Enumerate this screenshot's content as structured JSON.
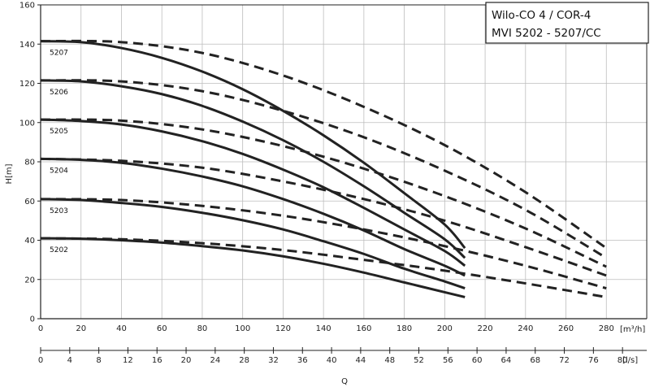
{
  "chart_data": {
    "type": "line",
    "title_lines": [
      "Wilo-CO 4 / COR-4",
      "MVI 5202 - 5207/CC"
    ],
    "ylabel": "H[m]",
    "xlabel": "Q",
    "x_unit": "[m³/h]",
    "x2_unit": "[l/s]",
    "xlim": [
      0,
      300
    ],
    "ylim": [
      0,
      160
    ],
    "x_ticks": [
      0,
      20,
      40,
      60,
      80,
      100,
      120,
      140,
      160,
      180,
      200,
      220,
      240,
      260,
      280
    ],
    "y_ticks": [
      0,
      20,
      40,
      60,
      80,
      100,
      120,
      140,
      160
    ],
    "x2_ticks": [
      0,
      4,
      8,
      12,
      16,
      20,
      24,
      28,
      32,
      36,
      40,
      44,
      48,
      52,
      56,
      60,
      64,
      68,
      72,
      76,
      80
    ],
    "grid": true,
    "series": [
      {
        "name": "5202",
        "style": "solid",
        "x": [
          0,
          20,
          40,
          60,
          80,
          100,
          120,
          140,
          160,
          180,
          200,
          210
        ],
        "values": [
          41,
          40.8,
          40,
          38.8,
          37,
          34.8,
          31.8,
          28,
          23.5,
          18.5,
          13.5,
          11
        ]
      },
      {
        "name": "5203",
        "style": "solid",
        "x": [
          0,
          20,
          40,
          60,
          80,
          100,
          120,
          140,
          160,
          180,
          200,
          210
        ],
        "values": [
          61,
          60.5,
          59,
          57,
          54,
          50.2,
          45.5,
          39.5,
          33,
          25.5,
          19,
          15.5
        ]
      },
      {
        "name": "5204",
        "style": "solid",
        "x": [
          0,
          20,
          40,
          60,
          80,
          100,
          120,
          140,
          160,
          180,
          200,
          210
        ],
        "values": [
          81.5,
          81,
          79.5,
          76.5,
          72.5,
          67.5,
          61,
          53.5,
          45,
          35.5,
          27,
          22
        ]
      },
      {
        "name": "5205",
        "style": "solid",
        "x": [
          0,
          20,
          40,
          60,
          80,
          100,
          120,
          140,
          160,
          180,
          200,
          210
        ],
        "values": [
          101.5,
          100.8,
          99,
          95.5,
          90.5,
          84,
          76,
          67,
          56.5,
          45.5,
          34.5,
          27
        ]
      },
      {
        "name": "5206",
        "style": "solid",
        "x": [
          0,
          20,
          40,
          60,
          80,
          100,
          120,
          140,
          160,
          180,
          200,
          210
        ],
        "values": [
          121.5,
          121,
          118.5,
          114.5,
          108.5,
          100.5,
          91,
          80,
          67.5,
          54,
          40.5,
          31
        ]
      },
      {
        "name": "5207",
        "style": "solid",
        "x": [
          0,
          20,
          40,
          60,
          80,
          100,
          120,
          140,
          160,
          180,
          200,
          210
        ],
        "values": [
          141.5,
          141,
          138,
          133,
          126,
          117,
          106,
          93.5,
          79.5,
          64,
          48,
          36
        ]
      },
      {
        "name": "5202",
        "style": "dashed",
        "x": [
          0,
          40,
          80,
          120,
          160,
          200,
          240,
          280
        ],
        "values": [
          41,
          40.5,
          38.5,
          35,
          30,
          24.5,
          18,
          11
        ]
      },
      {
        "name": "5203",
        "style": "dashed",
        "x": [
          0,
          40,
          80,
          120,
          160,
          200,
          240,
          280
        ],
        "values": [
          61,
          60.5,
          57.5,
          52.5,
          45.5,
          37,
          27,
          15.5
        ]
      },
      {
        "name": "5204",
        "style": "dashed",
        "x": [
          0,
          40,
          80,
          120,
          160,
          200,
          240,
          280
        ],
        "values": [
          81.5,
          80.5,
          77,
          70,
          61,
          50,
          36.5,
          22
        ]
      },
      {
        "name": "5205",
        "style": "dashed",
        "x": [
          0,
          40,
          80,
          120,
          160,
          200,
          240,
          280
        ],
        "values": [
          101.5,
          101,
          96.5,
          88,
          76.5,
          62.5,
          46,
          26.5
        ]
      },
      {
        "name": "5206",
        "style": "dashed",
        "x": [
          0,
          40,
          80,
          120,
          160,
          200,
          240,
          280
        ],
        "values": [
          121.5,
          121,
          116,
          106,
          92.5,
          75.5,
          55.5,
          31
        ]
      },
      {
        "name": "5207",
        "style": "dashed",
        "x": [
          0,
          40,
          80,
          120,
          160,
          200,
          240,
          280
        ],
        "values": [
          141.5,
          141,
          135.5,
          124,
          108,
          88.5,
          64.5,
          36
        ]
      }
    ]
  }
}
